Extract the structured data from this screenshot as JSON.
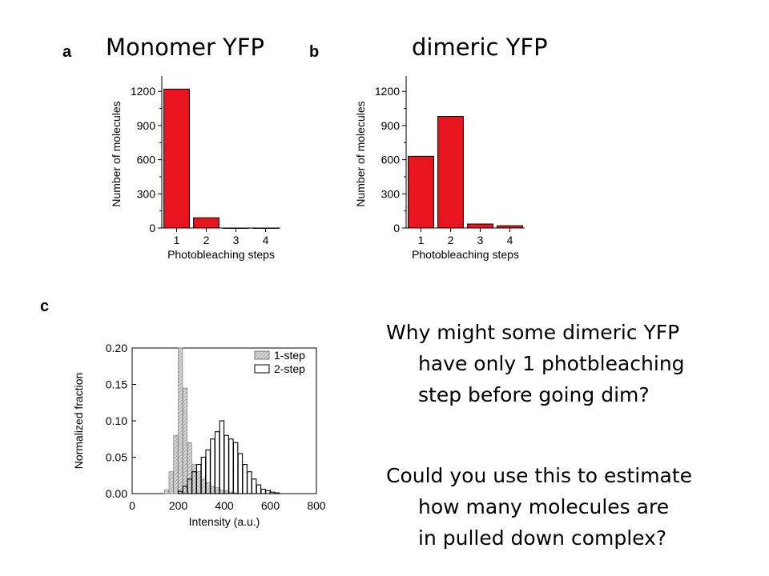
{
  "titles": {
    "panel_a": "Monomer YFP",
    "panel_b": "dimeric YFP"
  },
  "panel_letters": {
    "a": "a",
    "b": "b",
    "c": "c"
  },
  "question_1": {
    "line1": "Why might some dimeric YFP",
    "line2": "have only 1 photbleaching",
    "line3": "step before going dim?"
  },
  "question_2": {
    "line1": "Could you use this to estimate",
    "line2": "how many molecules are",
    "line3": "in pulled down complex?"
  },
  "chart_data": [
    {
      "id": "a",
      "type": "bar",
      "title": "Monomer YFP",
      "xlabel": "Photobleaching steps",
      "ylabel": "Number of molecules",
      "categories": [
        "1",
        "2",
        "3",
        "4"
      ],
      "values": [
        1220,
        90,
        0,
        0
      ],
      "ylim": [
        0,
        1300
      ],
      "yticks": [
        0,
        300,
        600,
        900,
        1200
      ],
      "color": "#e8141e"
    },
    {
      "id": "b",
      "type": "bar",
      "title": "dimeric YFP",
      "xlabel": "Photobleaching steps",
      "ylabel": "Number of molecules",
      "categories": [
        "1",
        "2",
        "3",
        "4"
      ],
      "values": [
        630,
        980,
        35,
        20
      ],
      "ylim": [
        0,
        1300
      ],
      "yticks": [
        0,
        300,
        600,
        900,
        1200
      ],
      "color": "#e8141e"
    },
    {
      "id": "c",
      "type": "bar",
      "subtype": "histogram",
      "xlabel": "Intensity (a.u.)",
      "ylabel": "Normalized fraction",
      "xlim": [
        0,
        800
      ],
      "ylim": [
        0,
        0.2
      ],
      "xticks": [
        0,
        200,
        400,
        600,
        800
      ],
      "yticks": [
        0.0,
        0.05,
        0.1,
        0.15,
        0.2
      ],
      "ytick_labels": [
        "0.00",
        "0.05",
        "0.10",
        "0.15",
        "0.20"
      ],
      "bin_width": 20,
      "legend_position": "top-right",
      "series": [
        {
          "name": "1-step",
          "style": "hatched-gray",
          "x": [
            140,
            160,
            180,
            200,
            220,
            240,
            260,
            280,
            300,
            320,
            340,
            360,
            380,
            400,
            420,
            440
          ],
          "values": [
            0.005,
            0.03,
            0.08,
            0.2,
            0.145,
            0.07,
            0.04,
            0.03,
            0.02,
            0.015,
            0.01,
            0.008,
            0.005,
            0.004,
            0.002,
            0.001
          ]
        },
        {
          "name": "2-step",
          "style": "open",
          "x": [
            200,
            220,
            240,
            260,
            280,
            300,
            320,
            340,
            360,
            380,
            400,
            420,
            440,
            460,
            480,
            500,
            520,
            540,
            560,
            580,
            600,
            620
          ],
          "values": [
            0.003,
            0.01,
            0.02,
            0.03,
            0.04,
            0.05,
            0.06,
            0.075,
            0.085,
            0.1,
            0.08,
            0.075,
            0.07,
            0.055,
            0.04,
            0.03,
            0.02,
            0.012,
            0.006,
            0.004,
            0.002,
            0.001
          ]
        }
      ]
    }
  ]
}
